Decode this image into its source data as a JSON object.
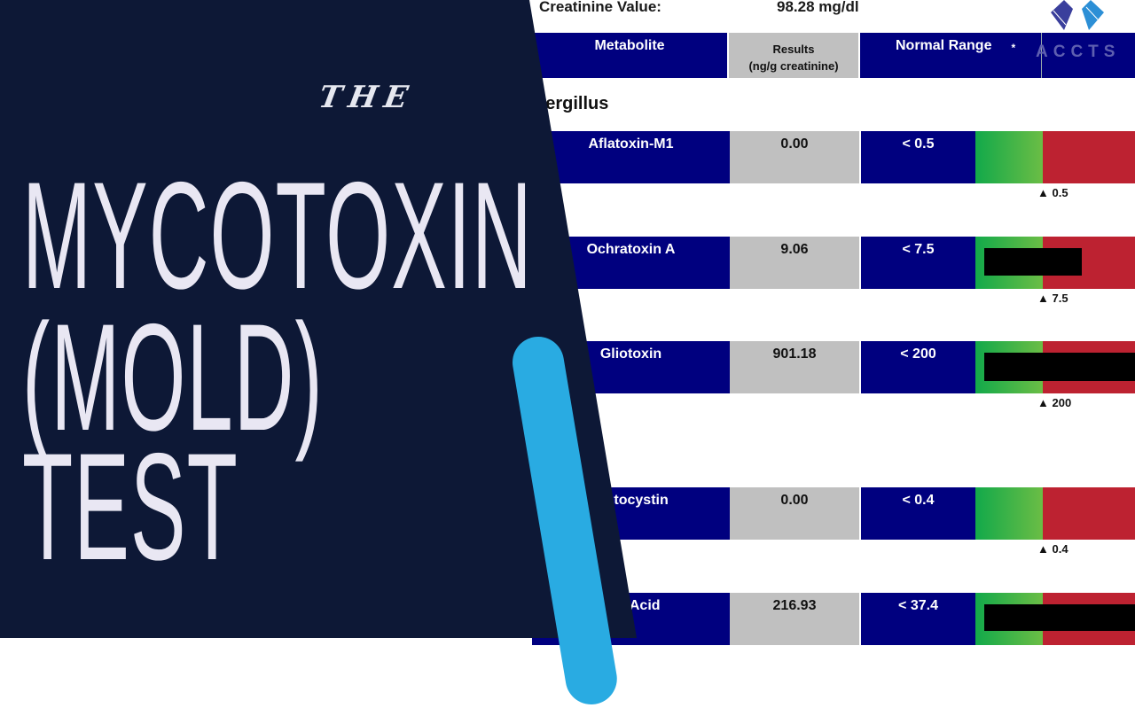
{
  "report": {
    "creatinine_label": "Creatinine Value:",
    "creatinine_value": "98.28 mg/dl",
    "headers": {
      "metabolite": "Metabolite",
      "results": "Results",
      "results_unit": "(ng/g creatinine)",
      "range": "Normal Range",
      "star": "*"
    },
    "watermark": "ACCTS",
    "section": "pergillus",
    "rows": [
      {
        "name": "Aflatoxin-M1",
        "result": "0.00",
        "range": "< 0.5",
        "marker": "▲ 0.5",
        "redacted": false
      },
      {
        "name": "Ochratoxin A",
        "result": "9.06",
        "range": "< 7.5",
        "marker": "▲ 7.5",
        "redacted": true
      },
      {
        "name": "Gliotoxin",
        "result": "901.18",
        "range": "< 200",
        "marker": "▲ 200",
        "redacted": true
      },
      {
        "name": "matocystin",
        "result": "0.00",
        "range": "< 0.4",
        "marker": "▲ 0.4",
        "redacted": false
      },
      {
        "name": "olic Acid",
        "result": "216.93",
        "range": "< 37.4",
        "marker": "",
        "redacted": true
      }
    ],
    "colors": {
      "header": "#00007f",
      "results_bg": "#c0c0c0",
      "normal": "#12a94a",
      "high": "#bd2231"
    }
  },
  "title": {
    "kicker": "THE",
    "line1": "MYCOTOXIN",
    "line2": "(MOLD)",
    "line3": "TEST"
  },
  "colors": {
    "panel": "#0d1836",
    "stripe": "#29abe2",
    "title": "#e9e7f3"
  }
}
